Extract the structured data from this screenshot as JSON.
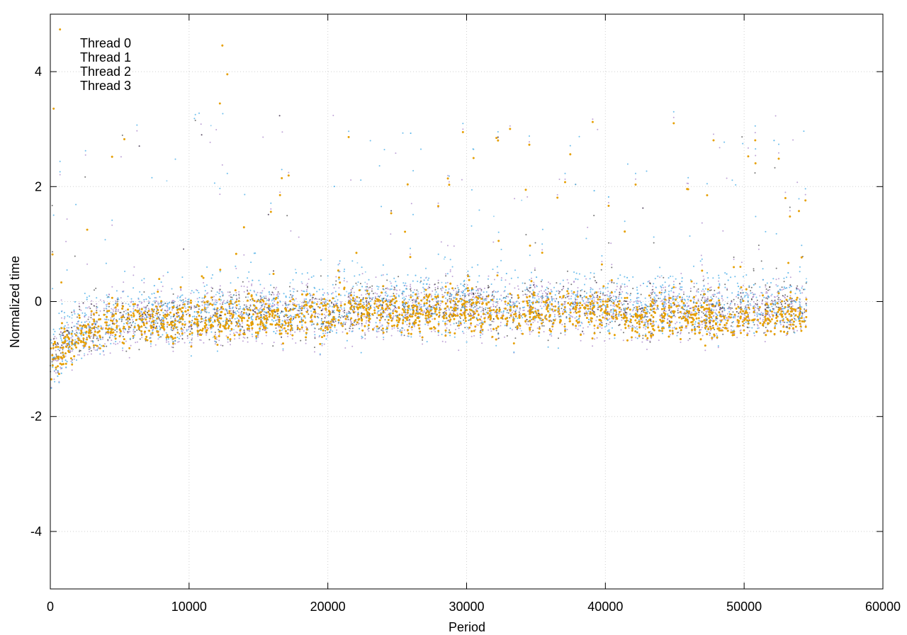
{
  "chart_data": {
    "type": "scatter",
    "title": "",
    "xlabel": "Period",
    "ylabel": "Normalized time",
    "xlim": [
      0,
      60000
    ],
    "ylim": [
      -5,
      5
    ],
    "xticks": [
      0,
      10000,
      20000,
      30000,
      40000,
      50000,
      60000
    ],
    "xtick_labels": [
      "0",
      "10000",
      "20000",
      "30000",
      "40000",
      "50000",
      "60000"
    ],
    "yticks": [
      -4,
      -2,
      0,
      2,
      4
    ],
    "ytick_labels": [
      "-4",
      "-2",
      "0",
      "2",
      "4"
    ],
    "grid": true,
    "legend_position": "top-left",
    "series": [
      {
        "name": "Thread 0",
        "color": "#9467bd",
        "x": [
          0,
          500,
          1000,
          2000,
          3000,
          5000,
          7500,
          10000,
          12500,
          15000,
          17500,
          20000,
          22500,
          25000,
          27500,
          30000,
          32500,
          35000,
          37500,
          40000,
          42500,
          45000,
          47500,
          50000,
          52500,
          54500
        ],
        "y": [
          -1.0,
          -0.9,
          -0.75,
          -0.6,
          -0.45,
          -0.35,
          -0.3,
          -0.3,
          -0.25,
          -0.2,
          -0.25,
          -0.2,
          -0.1,
          -0.15,
          -0.15,
          -0.1,
          -0.15,
          -0.1,
          -0.15,
          -0.1,
          -0.2,
          -0.15,
          -0.2,
          -0.15,
          -0.15,
          -0.15
        ]
      },
      {
        "name": "Thread 1",
        "color": "#1a1a1a",
        "x": [
          0,
          500,
          1000,
          2000,
          3000,
          5000,
          7500,
          10000,
          12500,
          15000,
          17500,
          20000,
          22500,
          25000,
          27500,
          30000,
          32500,
          35000,
          37500,
          40000,
          42500,
          45000,
          47500,
          50000,
          52500,
          54500
        ],
        "y": [
          -1.0,
          -0.88,
          -0.72,
          -0.58,
          -0.45,
          -0.35,
          -0.3,
          -0.3,
          -0.25,
          -0.2,
          -0.25,
          -0.2,
          -0.1,
          -0.15,
          -0.15,
          0.0,
          -0.15,
          -0.05,
          -0.1,
          -0.05,
          -0.2,
          -0.15,
          -0.2,
          -0.1,
          -0.05,
          -0.15
        ]
      },
      {
        "name": "Thread 2",
        "color": "#56b4e9",
        "x": [
          0,
          500,
          1000,
          2000,
          3000,
          5000,
          7500,
          10000,
          12500,
          15000,
          17500,
          20000,
          22500,
          25000,
          27500,
          30000,
          32500,
          35000,
          37500,
          40000,
          42500,
          45000,
          47500,
          50000,
          52500,
          54500
        ],
        "y": [
          -0.95,
          -0.85,
          -0.7,
          -0.5,
          -0.4,
          -0.25,
          -0.2,
          -0.2,
          -0.15,
          -0.1,
          -0.15,
          -0.1,
          0.0,
          -0.05,
          -0.05,
          0.0,
          -0.05,
          0.0,
          -0.05,
          0.0,
          -0.1,
          -0.05,
          -0.1,
          -0.05,
          0.0,
          -0.05
        ]
      },
      {
        "name": "Thread 3",
        "color": "#e69f00",
        "x": [
          0,
          500,
          1000,
          2000,
          3000,
          5000,
          7500,
          10000,
          12500,
          15000,
          17500,
          20000,
          22500,
          25000,
          27500,
          30000,
          32500,
          35000,
          37500,
          40000,
          42500,
          45000,
          47500,
          50000,
          52500,
          54500
        ],
        "y": [
          -1.0,
          -0.9,
          -0.8,
          -0.65,
          -0.5,
          -0.35,
          -0.35,
          -0.3,
          -0.3,
          -0.25,
          -0.3,
          -0.2,
          -0.1,
          -0.2,
          -0.2,
          -0.15,
          -0.2,
          -0.15,
          -0.2,
          -0.15,
          -0.3,
          -0.25,
          -0.3,
          -0.3,
          -0.25,
          -0.25
        ]
      }
    ]
  }
}
